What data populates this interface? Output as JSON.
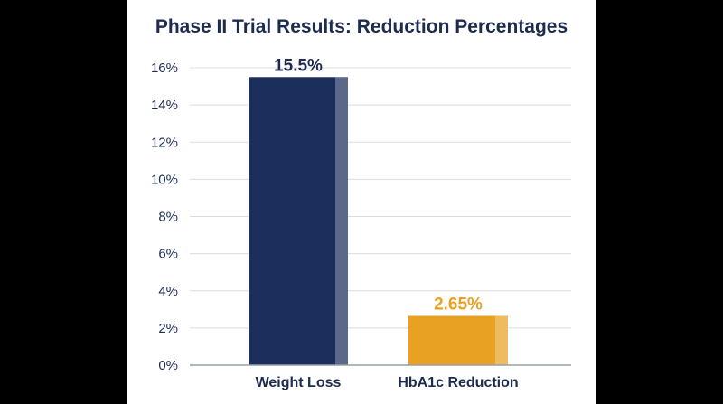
{
  "colors": {
    "background": "#000000",
    "card": "#ffffff",
    "text": "#1c2b4f",
    "grid": "#dcdcdc",
    "weight_loss_bar": "#1c2e5c",
    "hba1c_bar": "#e8a122"
  },
  "chart_data": {
    "type": "bar",
    "title": "Phase II Trial Results: Reduction Percentages",
    "xlabel": "",
    "ylabel": "",
    "ylim": [
      0,
      16
    ],
    "yticks": [
      "0%",
      "2%",
      "4%",
      "6%",
      "8%",
      "10%",
      "12%",
      "14%",
      "16%"
    ],
    "grid": true,
    "categories": [
      "Weight Loss",
      "HbA1c Reduction"
    ],
    "values": [
      15.5,
      2.65
    ],
    "data_labels": [
      "15.5%",
      "2.65%"
    ],
    "bar_colors": [
      "#1c2e5c",
      "#e8a122"
    ]
  }
}
